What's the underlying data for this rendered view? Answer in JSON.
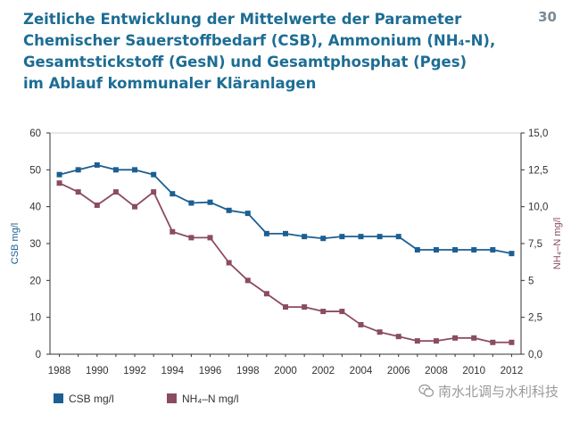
{
  "page_number": "30",
  "title_lines": [
    "Zeitliche Entwicklung der Mittelwerte der Parameter",
    "Chemischer Sauerstoffbedarf (CSB), Ammonium (NH₄-N),",
    "Gesamtstickstoff (GesN) und Gesamtphosphat (Pges)",
    "im Ablauf kommunaler Kläranlagen"
  ],
  "watermark": {
    "text": "南水北调与水利科技",
    "icon": "wechat-icon"
  },
  "colors": {
    "title": "#1d6d94",
    "csb": "#1c5f92",
    "nh4": "#8b4b63",
    "axis": "#333333"
  },
  "chart_data": {
    "type": "line",
    "x": [
      1988,
      1989,
      1990,
      1991,
      1992,
      1993,
      1994,
      1995,
      1996,
      1997,
      1998,
      1999,
      2000,
      2001,
      2002,
      2003,
      2004,
      2005,
      2006,
      2007,
      2008,
      2009,
      2010,
      2011,
      2012
    ],
    "x_ticks": [
      "1988",
      "1990",
      "1992",
      "1994",
      "1996",
      "1998",
      "2000",
      "2002",
      "2004",
      "2006",
      "2008",
      "2010",
      "2012"
    ],
    "x_tick_values": [
      1988,
      1990,
      1992,
      1994,
      1996,
      1998,
      2000,
      2002,
      2004,
      2006,
      2008,
      2010,
      2012
    ],
    "xlim": [
      1987.5,
      2012.5
    ],
    "y_left": {
      "label": "CSB mg/l",
      "ylim": [
        0,
        60
      ],
      "tick_labels": [
        "0",
        "10",
        "20",
        "30",
        "40",
        "50",
        "60"
      ],
      "tick_values": [
        0,
        10,
        20,
        30,
        40,
        50,
        60
      ]
    },
    "y_right": {
      "label": "NH₄–N mg/l",
      "ylim": [
        0,
        15
      ],
      "tick_labels": [
        "0,0",
        "2,5",
        "5",
        "7,5",
        "10,0",
        "12,5",
        "15,0"
      ],
      "tick_values": [
        0,
        2.5,
        5,
        7.5,
        10,
        12.5,
        15
      ]
    },
    "series": [
      {
        "name": "CSB mg/l",
        "axis": "left",
        "marker": "square",
        "values": [
          48.7,
          50.0,
          51.3,
          50.0,
          50.0,
          48.7,
          43.5,
          41.0,
          41.2,
          39.0,
          38.2,
          32.7,
          32.7,
          31.9,
          31.4,
          31.9,
          31.9,
          31.9,
          31.9,
          28.3,
          28.3,
          28.3,
          28.3,
          28.3,
          27.3
        ]
      },
      {
        "name": "NH₄–N mg/l",
        "axis": "right",
        "marker": "square",
        "values": [
          11.6,
          11.0,
          10.1,
          11.0,
          10.0,
          11.0,
          8.3,
          7.9,
          7.9,
          6.2,
          5.0,
          4.1,
          3.2,
          3.2,
          2.9,
          2.9,
          2.0,
          1.5,
          1.2,
          0.9,
          0.9,
          1.1,
          1.1,
          0.8,
          0.8
        ]
      }
    ]
  }
}
